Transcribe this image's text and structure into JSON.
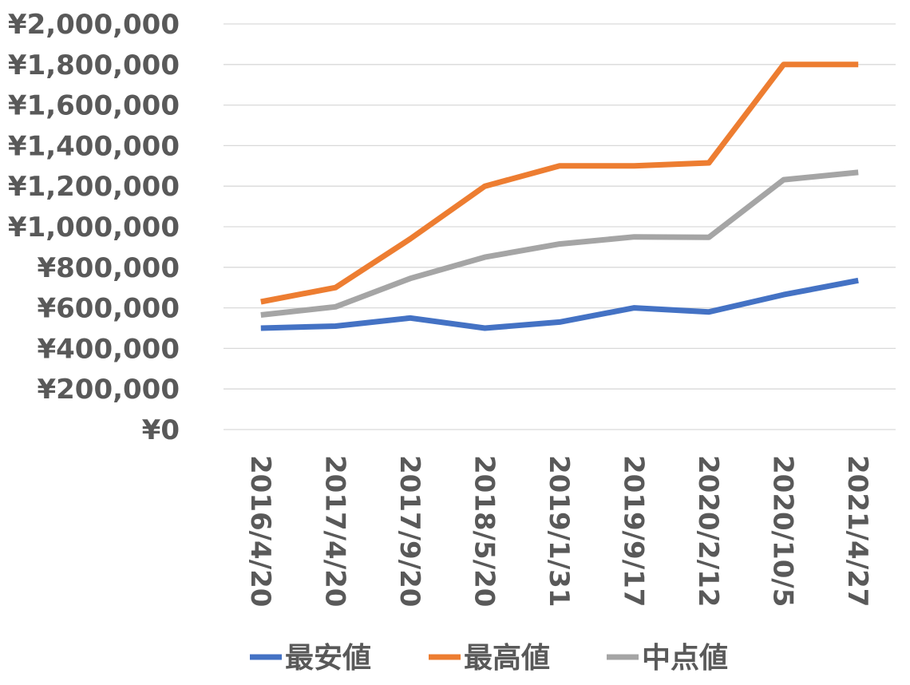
{
  "chart_data": {
    "type": "line",
    "title": "",
    "xlabel": "",
    "ylabel": "",
    "categories": [
      "2016/4/20",
      "2017/4/20",
      "2017/9/20",
      "2018/5/20",
      "2019/1/31",
      "2019/9/17",
      "2020/2/12",
      "2020/10/5",
      "2021/4/27"
    ],
    "ylim": [
      0,
      2000000
    ],
    "yticks": [
      0,
      200000,
      400000,
      600000,
      800000,
      1000000,
      1200000,
      1400000,
      1600000,
      1800000,
      2000000
    ],
    "ytick_labels": [
      "¥0",
      "¥200,000",
      "¥400,000",
      "¥600,000",
      "¥800,000",
      "¥1,000,000",
      "¥1,200,000",
      "¥1,400,000",
      "¥1,600,000",
      "¥1,800,000",
      "¥2,000,000"
    ],
    "grid": true,
    "legend_position": "bottom",
    "series": [
      {
        "name": "最安値",
        "color": "#4472c4",
        "values": [
          500000,
          510000,
          550000,
          500000,
          530000,
          600000,
          580000,
          665000,
          735000
        ]
      },
      {
        "name": "最高値",
        "color": "#ed7d31",
        "values": [
          630000,
          700000,
          940000,
          1200000,
          1300000,
          1300000,
          1315000,
          1800000,
          1800000
        ]
      },
      {
        "name": "中点値",
        "color": "#a5a5a5",
        "values": [
          565000,
          605000,
          745000,
          850000,
          915000,
          950000,
          948000,
          1232000,
          1268000
        ]
      }
    ]
  }
}
